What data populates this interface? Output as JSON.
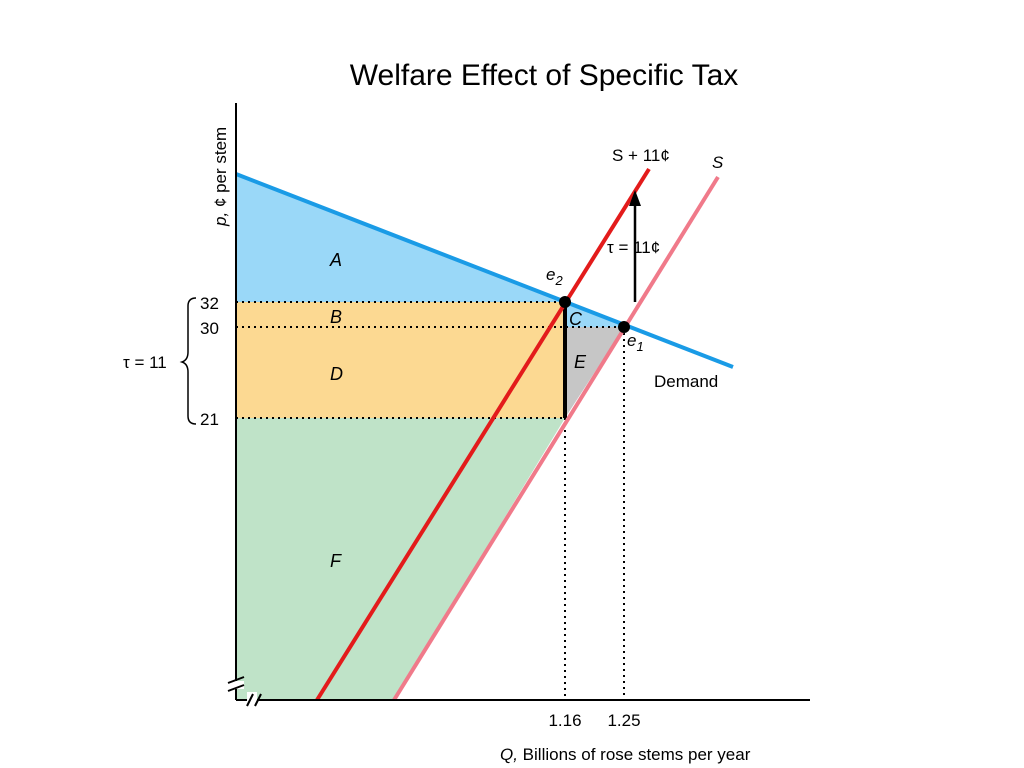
{
  "chart_data": {
    "type": "line",
    "title": "Welfare Effect of Specific Tax",
    "xlabel": {
      "var": "Q,",
      "text": " Billions of rose stems per year"
    },
    "ylabel": {
      "var": "p,",
      "text": " ¢ per stem"
    },
    "x_ticks": [
      "1.16",
      "1.25"
    ],
    "y_ticks": [
      "32",
      "30",
      "21"
    ],
    "tax_bracket_label": "τ = 11",
    "tax_arrow_label": "τ = 11¢",
    "series": [
      {
        "name": "Demand",
        "color": "#1a9be6"
      },
      {
        "name": "S + 11¢",
        "color": "#e31b1b"
      },
      {
        "name": "S",
        "color": "#f07a8a"
      }
    ],
    "points": [
      {
        "name": "e",
        "sub": "2",
        "x": 1.16,
        "y": 32
      },
      {
        "name": "e",
        "sub": "1",
        "x": 1.25,
        "y": 30
      }
    ],
    "regions": [
      {
        "label": "A",
        "color": "#9ad8f8"
      },
      {
        "label": "B",
        "color": "#fcd992"
      },
      {
        "label": "C",
        "color": "#9ad8f8"
      },
      {
        "label": "D",
        "color": "#fcd992"
      },
      {
        "label": "E",
        "color": "#c6c6c6"
      },
      {
        "label": "F",
        "color": "#bfe3c8"
      }
    ]
  }
}
